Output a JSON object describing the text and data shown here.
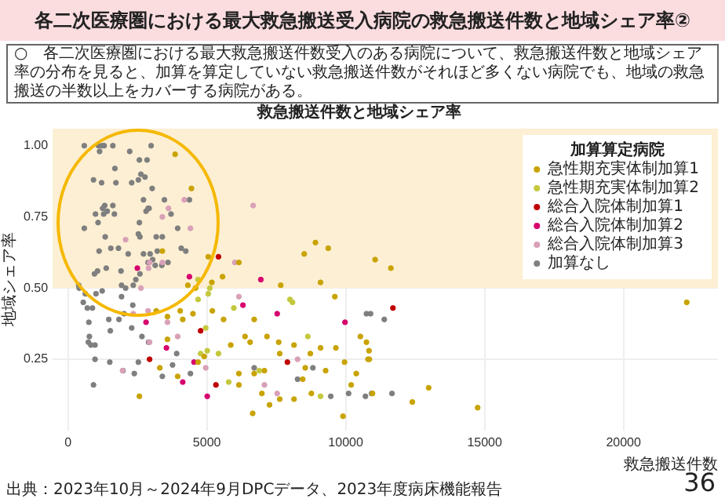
{
  "chart_data": {
    "type": "scatter",
    "title": "各二次医療圏における最大救急搬送受入病院の救急搬送件数と地域シェア率②",
    "xlabel": "救急搬送件数",
    "ylabel": "地域シェア率",
    "legend_title": "加算算定病院",
    "legend": "top right",
    "grid": true,
    "marker": "circle",
    "xlim": [
      -550,
      23400
    ],
    "xticks": [
      0,
      5000,
      10000,
      15000,
      20000
    ],
    "ylim": [
      0,
      1.06
    ],
    "yticks": [
      {
        "value": 0.25,
        "label": "0.25"
      },
      {
        "value": 0.5,
        "label": "0.50"
      },
      {
        "value": 0.75,
        "label": "0.75"
      },
      {
        "value": 1,
        "label": "1.00"
      }
    ],
    "bands": [
      {
        "axis": "y",
        "from": 0.5,
        "to": 1.06,
        "color": "#fdefd3"
      }
    ],
    "series": [
      {
        "name": "急性期充実体制加算1",
        "color": "#c9a300",
        "x": [
          3858,
          4446,
          3398,
          5052,
          6154,
          5566,
          5180,
          4593,
          4317,
          7661,
          8506,
          8910,
          9369,
          9093,
          11059,
          11626,
          2572,
          3178,
          3582,
          4041,
          4501,
          5199,
          5603,
          4685,
          4905,
          3950,
          3307,
          3582,
          4133,
          6154,
          6558,
          6705,
          7073,
          6981,
          6650,
          7257,
          7624,
          6705,
          7165,
          7587,
          7624,
          8139,
          8543,
          8726,
          9093,
          9277,
          9645,
          9608,
          9957,
          10196,
          9902,
          10380,
          10527,
          10746,
          10802,
          8139,
          8451,
          5861,
          6375,
          6154,
          8763,
          10838,
          10850,
          10965,
          12398,
          12986,
          14750,
          22277
        ],
        "values": [
          0.97,
          0.85,
          0.63,
          0.61,
          0.59,
          0.54,
          0.52,
          0.5,
          0.51,
          0.51,
          0.62,
          0.66,
          0.64,
          0.52,
          0.6,
          0.57,
          0.12,
          0.42,
          0.4,
          0.42,
          0.41,
          0.42,
          0.39,
          0.24,
          0.26,
          0.19,
          0.22,
          0.32,
          0.39,
          0.2,
          0.31,
          0.2,
          0.21,
          0.13,
          0.06,
          0.09,
          0.11,
          0.39,
          0.33,
          0.31,
          0.27,
          0.3,
          0.22,
          0.27,
          0.29,
          0.21,
          0.29,
          0.47,
          0.24,
          0.16,
          0.05,
          0.2,
          0.33,
          0.31,
          0.25,
          0.11,
          0.18,
          0.3,
          0.33,
          0.16,
          0.13,
          0.28,
          0.25,
          0.13,
          0.1,
          0.15,
          0.08,
          0.45
        ]
      },
      {
        "name": "急性期充実体制加算2",
        "color": "#c4c83c",
        "x": [
          4685,
          5052,
          5971,
          7992,
          8084,
          8635,
          5419,
          5015,
          5786,
          9093,
          6889,
          4776,
          4960,
          5107,
          4685
        ],
        "values": [
          0.46,
          0.48,
          0.43,
          0.46,
          0.45,
          0.33,
          0.27,
          0.28,
          0.17,
          0.12,
          0.21,
          0.27,
          0.36,
          0.5,
          0.53
        ]
      },
      {
        "name": "総合入院体制加算1",
        "color": "#c00000",
        "x": [
          5419,
          2939,
          4776,
          5327,
          7900,
          11700
        ],
        "values": [
          0.61,
          0.25,
          0.35,
          0.16,
          0.24,
          0.43
        ]
      },
      {
        "name": "総合入院体制加算2",
        "color": "#d6006e",
        "x": [
          2498,
          4372,
          6944,
          2811,
          3545,
          4133,
          5015,
          6301,
          7532,
          9975,
          4538
        ],
        "values": [
          0.57,
          0.54,
          0.53,
          0.38,
          0.29,
          0.17,
          0.12,
          0.44,
          0.41,
          0.38,
          0.24
        ]
      },
      {
        "name": "総合入院体制加算3",
        "color": "#d9a0b8",
        "x": [
          2076,
          3398,
          3619,
          4188,
          4409,
          2939,
          3398,
          6668,
          6007,
          2902,
          2627,
          2351,
          2884,
          1966,
          2939,
          3582,
          3950,
          4960,
          6154,
          7073,
          7532,
          8267
        ],
        "values": [
          0.67,
          0.75,
          0.78,
          0.81,
          0.71,
          0.59,
          0.59,
          0.79,
          0.59,
          0.57,
          0.5,
          0.41,
          0.42,
          0.21,
          0.31,
          0.38,
          0.33,
          0.22,
          0.47,
          0.16,
          0.13,
          0.25
        ]
      },
      {
        "name": "加算なし",
        "color": "#7f7f7f",
        "x": [
          588,
          1102,
          1231,
          1304,
          1617,
          2994,
          1139,
          2223,
          2572,
          2847,
          1690,
          919,
          1212,
          1727,
          2296,
          2535,
          2627,
          2774,
          3031,
          2719,
          2884,
          3472,
          1323,
          1249,
          1414,
          1617,
          1672,
          992,
          1286,
          1084,
          2572,
          2811,
          2921,
          3711,
          4372,
          588,
          1341,
          2535,
          2590,
          3178,
          3398,
          3950,
          1121,
          1543,
          1819,
          2168,
          1065,
          955,
          1378,
          1910,
          2590,
          3141,
          3380,
          3600,
          4078,
          4243,
          2719,
          2958,
          3049,
          3215,
          2884,
          2443,
          2351,
          1929,
          2076,
          404,
          386,
          625,
          1010,
          1231,
          551,
          698,
          882,
          753,
          1470,
          1525,
          772,
          827,
          974,
          735,
          974,
          1506,
          919,
          1929,
          2333,
          2021,
          1837,
          2296,
          2664,
          2535,
          1984,
          2388,
          2902,
          3398,
          3913,
          3766,
          4409,
          6705,
          8267,
          8818,
          9461,
          10104,
          10746,
          10710,
          10930,
          10893,
          11389,
          11665
        ],
        "values": [
          1,
          1,
          1,
          1,
          1,
          1,
          0.98,
          0.98,
          0.95,
          0.95,
          0.92,
          0.88,
          0.87,
          0.87,
          0.87,
          0.88,
          0.9,
          0.89,
          0.85,
          0.81,
          0.78,
          0.81,
          0.79,
          0.78,
          0.77,
          0.79,
          0.76,
          0.76,
          0.76,
          0.73,
          0.73,
          0.77,
          0.78,
          0.76,
          0.81,
          0.71,
          0.68,
          0.69,
          0.68,
          0.68,
          0.68,
          0.71,
          0.63,
          0.64,
          0.64,
          0.62,
          0.56,
          0.55,
          0.57,
          0.56,
          0.55,
          0.58,
          0.58,
          0.59,
          0.64,
          0.63,
          0.62,
          0.62,
          0.6,
          0.63,
          0.59,
          0.53,
          0.51,
          0.51,
          0.5,
          0.5,
          0.51,
          0.48,
          0.48,
          0.49,
          0.45,
          0.43,
          0.43,
          0.38,
          0.39,
          0.35,
          0.33,
          0.3,
          0.3,
          0.31,
          0.25,
          0.24,
          0.16,
          0.47,
          0.44,
          0.41,
          0.39,
          0.36,
          0.33,
          0.24,
          0.21,
          0.2,
          0.31,
          0.19,
          0.27,
          0.23,
          0.2,
          0.22,
          0.18,
          0.22,
          0.12,
          0.13,
          0.41,
          0.12,
          0.13,
          0.41,
          0.39,
          0.13
        ]
      }
    ],
    "annotations": [
      "救急搬送件数と地域シェア率",
      "出典：2023年10月～2024年9月DPCデータ、2023年度病床機能報告",
      "36"
    ],
    "subtitle": "○　各二次医療圏における最大救急搬送件数受入のある病院について、救急搬送件数と地域シェア率の分布を見ると、加算を算定していない救急搬送件数がそれほど多くない病院でも、地域の救急搬送の半数以上をカバーする病院がある。"
  }
}
